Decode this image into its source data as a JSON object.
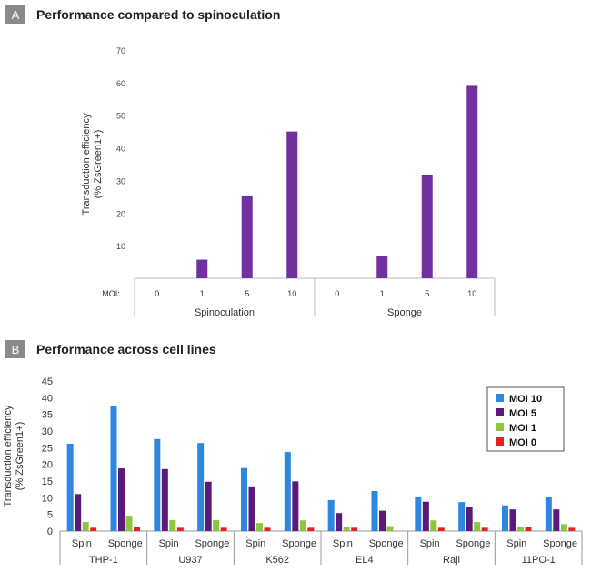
{
  "colors": {
    "purple": "#7030a0",
    "moi10": "#2e86de",
    "moi5": "#5b1a7a",
    "moi1": "#8cc63f",
    "moi0": "#e02424",
    "panel_letter_bg": "#8a8a8a"
  },
  "panel_a": {
    "letter": "A",
    "title": "Performance compared to spinoculation"
  },
  "panel_b": {
    "letter": "B",
    "title": "Performance across cell lines"
  },
  "chart_data": [
    {
      "type": "bar",
      "ylabel": "Transduction efficiency\n(% ZsGreen1+)",
      "ylim": [
        0,
        70
      ],
      "yticks": [
        10,
        20,
        30,
        40,
        50,
        60,
        70
      ],
      "row_label": "MOI:",
      "groups": [
        "Spinoculation",
        "Sponge"
      ],
      "categories": [
        "0",
        "1",
        "5",
        "10"
      ],
      "series": [
        {
          "values": [
            [
              0,
              5.7,
              25.4,
              45
            ],
            [
              0,
              6.8,
              31.8,
              59
            ]
          ]
        }
      ],
      "grid": false
    },
    {
      "type": "bar",
      "ylabel": "Transduction efficiency\n(% ZsGreen1+)",
      "ylim": [
        0,
        45
      ],
      "yticks": [
        0,
        5,
        10,
        15,
        20,
        25,
        30,
        35,
        40,
        45
      ],
      "groups": [
        "THP-1",
        "U937",
        "K562",
        "EL4",
        "Raji",
        "11PO-1"
      ],
      "subcategories": [
        "Spin",
        "Sponge"
      ],
      "legend_position": "top-right",
      "series": [
        {
          "name": "MOI 10",
          "values": [
            26.2,
            37.6,
            27.6,
            26.4,
            18.9,
            23.7,
            9.3,
            12.0,
            10.4,
            8.7,
            7.7,
            10.2
          ]
        },
        {
          "name": "MOI 5",
          "values": [
            11.1,
            18.8,
            18.6,
            14.8,
            13.4,
            14.9,
            5.4,
            6.1,
            8.8,
            7.2,
            6.5,
            6.5
          ]
        },
        {
          "name": "MOI 1",
          "values": [
            2.7,
            4.6,
            3.3,
            3.3,
            2.4,
            3.2,
            1.2,
            1.5,
            3.2,
            2.7,
            1.4,
            2.1
          ]
        },
        {
          "name": "MOI 0",
          "values": [
            1.0,
            1.1,
            1.0,
            1.0,
            1.0,
            1.0,
            1.0,
            0.0,
            1.0,
            1.0,
            1.1,
            1.0
          ]
        }
      ],
      "grid": false
    }
  ]
}
